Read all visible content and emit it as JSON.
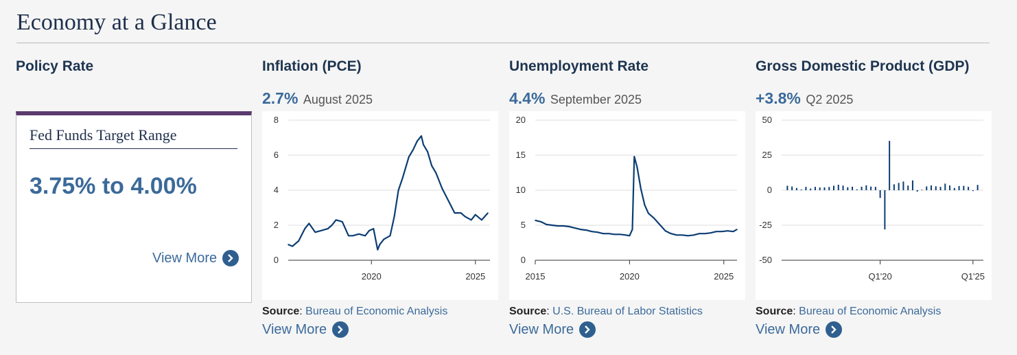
{
  "page": {
    "title": "Economy at a Glance"
  },
  "policy_rate": {
    "title": "Policy Rate",
    "card_title": "Fed Funds Target Range",
    "value": "3.75% to 4.00%",
    "view_more": "View More"
  },
  "inflation": {
    "title": "Inflation (PCE)",
    "value": "2.7%",
    "period": "August 2025",
    "source_label": "Source",
    "source_name": "Bureau of Economic Analysis",
    "view_more": "View More"
  },
  "unemployment": {
    "title": "Unemployment Rate",
    "value": "4.4%",
    "period": "September 2025",
    "source_label": "Source",
    "source_name": "U.S. Bureau of Labor Statistics",
    "view_more": "View More"
  },
  "gdp": {
    "title": "Gross Domestic Product (GDP)",
    "value": "+3.8%",
    "period": "Q2 2025",
    "source_label": "Source",
    "source_name": "Bureau of Economic Analysis",
    "view_more": "View More"
  },
  "colors": {
    "accent": "#3b6a9a",
    "line": "#0b3d73",
    "policy_bar": "#5b3a6e"
  },
  "chart_data": [
    {
      "id": "inflation",
      "type": "line",
      "title": "Inflation (PCE)",
      "x_range": [
        2016.0,
        2025.7
      ],
      "ylim": [
        0,
        8
      ],
      "y_ticks": [
        0,
        2,
        4,
        6,
        8
      ],
      "x_ticks": [
        2020,
        2025
      ],
      "x": [
        2016.0,
        2016.2,
        2016.5,
        2016.8,
        2017.0,
        2017.3,
        2017.6,
        2017.9,
        2018.1,
        2018.3,
        2018.6,
        2018.9,
        2019.1,
        2019.4,
        2019.7,
        2019.9,
        2020.1,
        2020.3,
        2020.4,
        2020.6,
        2020.9,
        2021.1,
        2021.3,
        2021.5,
        2021.8,
        2022.0,
        2022.2,
        2022.4,
        2022.5,
        2022.7,
        2022.9,
        2023.1,
        2023.4,
        2023.7,
        2024.0,
        2024.3,
        2024.5,
        2024.8,
        2025.0,
        2025.3,
        2025.6
      ],
      "values": [
        0.9,
        0.8,
        1.1,
        1.8,
        2.1,
        1.6,
        1.7,
        1.8,
        2.0,
        2.3,
        2.2,
        1.4,
        1.4,
        1.5,
        1.4,
        1.7,
        1.8,
        0.6,
        0.9,
        1.2,
        1.4,
        2.5,
        4.0,
        4.7,
        5.9,
        6.3,
        6.8,
        7.1,
        6.6,
        6.2,
        5.4,
        5.0,
        4.1,
        3.4,
        2.7,
        2.7,
        2.5,
        2.3,
        2.6,
        2.3,
        2.7
      ]
    },
    {
      "id": "unemployment",
      "type": "line",
      "title": "Unemployment Rate",
      "x_range": [
        2015.0,
        2025.7
      ],
      "ylim": [
        0,
        20
      ],
      "y_ticks": [
        0,
        5,
        10,
        15,
        20
      ],
      "x_ticks": [
        2015,
        2020,
        2025
      ],
      "x": [
        2015.0,
        2015.3,
        2015.6,
        2015.9,
        2016.2,
        2016.5,
        2016.8,
        2017.1,
        2017.4,
        2017.7,
        2018.0,
        2018.3,
        2018.6,
        2018.9,
        2019.2,
        2019.5,
        2019.8,
        2020.0,
        2020.15,
        2020.25,
        2020.4,
        2020.6,
        2020.8,
        2021.0,
        2021.3,
        2021.6,
        2021.9,
        2022.2,
        2022.5,
        2022.8,
        2023.1,
        2023.4,
        2023.7,
        2024.0,
        2024.3,
        2024.6,
        2024.9,
        2025.2,
        2025.5,
        2025.7
      ],
      "values": [
        5.7,
        5.5,
        5.1,
        5.0,
        4.9,
        4.9,
        4.8,
        4.6,
        4.4,
        4.3,
        4.1,
        4.0,
        3.8,
        3.8,
        3.7,
        3.7,
        3.6,
        3.5,
        4.4,
        14.8,
        13.3,
        10.2,
        7.9,
        6.7,
        6.0,
        5.1,
        4.2,
        3.8,
        3.6,
        3.6,
        3.5,
        3.6,
        3.8,
        3.8,
        3.9,
        4.1,
        4.1,
        4.2,
        4.1,
        4.4
      ]
    },
    {
      "id": "gdp",
      "type": "bar",
      "title": "Gross Domestic Product (GDP)",
      "ylim": [
        -50,
        50
      ],
      "y_ticks": [
        -50,
        -25,
        0,
        25,
        50
      ],
      "x_ticks": [
        "Q1'20",
        "Q1'25"
      ],
      "categories": [
        "Q1'15",
        "Q2'15",
        "Q3'15",
        "Q4'15",
        "Q1'16",
        "Q2'16",
        "Q3'16",
        "Q4'16",
        "Q1'17",
        "Q2'17",
        "Q3'17",
        "Q4'17",
        "Q1'18",
        "Q2'18",
        "Q3'18",
        "Q4'18",
        "Q1'19",
        "Q2'19",
        "Q3'19",
        "Q4'19",
        "Q1'20",
        "Q2'20",
        "Q3'20",
        "Q4'20",
        "Q1'21",
        "Q2'21",
        "Q3'21",
        "Q4'21",
        "Q1'22",
        "Q2'22",
        "Q3'22",
        "Q4'22",
        "Q1'23",
        "Q2'23",
        "Q3'23",
        "Q4'23",
        "Q1'24",
        "Q2'24",
        "Q3'24",
        "Q4'24",
        "Q1'25",
        "Q2'25"
      ],
      "values": [
        3.2,
        2.6,
        1.6,
        0.5,
        2.4,
        1.2,
        2.4,
        2.0,
        2.0,
        2.3,
        3.2,
        3.9,
        3.3,
        2.1,
        2.5,
        0.6,
        2.5,
        3.5,
        2.6,
        2.4,
        -5.5,
        -28.0,
        35.2,
        4.2,
        5.2,
        6.2,
        3.3,
        7.0,
        -1.0,
        0.3,
        2.7,
        3.4,
        2.8,
        2.4,
        4.7,
        3.4,
        1.6,
        3.0,
        3.1,
        2.4,
        -0.6,
        3.8
      ]
    }
  ]
}
